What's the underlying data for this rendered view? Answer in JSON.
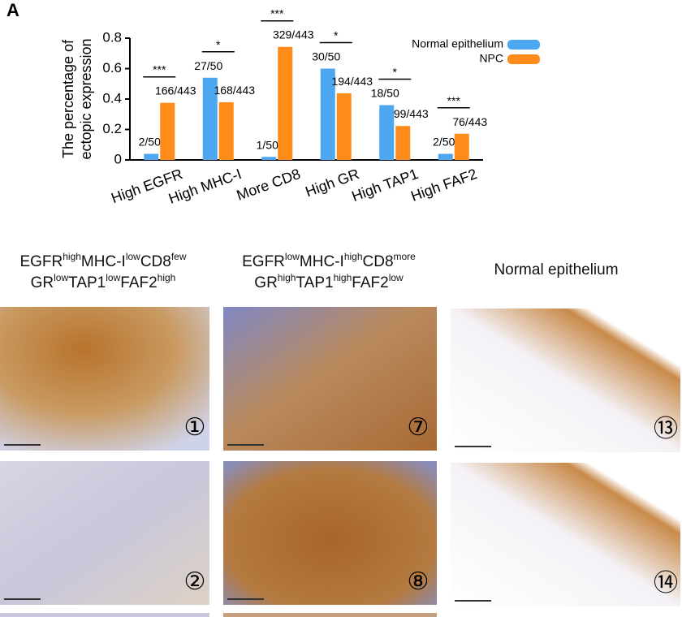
{
  "panel_label": "A",
  "chart_data": {
    "type": "bar",
    "y_label": [
      "The percentage of",
      "ectopic expression"
    ],
    "categories": [
      "High EGFR",
      "High MHC-I",
      "More CD8",
      "High GR",
      "High TAP1",
      "High FAF2"
    ],
    "series": [
      {
        "name": "Normal epithelium",
        "color": "#4da6f0",
        "values": [
          0.04,
          0.54,
          0.02,
          0.6,
          0.36,
          0.04
        ],
        "value_labels": [
          "2/50",
          "27/50",
          "1/50",
          "30/50",
          "18/50",
          "2/50"
        ]
      },
      {
        "name": "NPC",
        "color": "#ff8c1a",
        "values": [
          0.375,
          0.379,
          0.743,
          0.438,
          0.223,
          0.172
        ],
        "value_labels": [
          "166/443",
          "168/443",
          "329/443",
          "194/443",
          "99/443",
          "76/443"
        ]
      }
    ],
    "significance": [
      "***",
      "*",
      "***",
      "*",
      "*",
      "***"
    ],
    "ylim": [
      0,
      0.8
    ],
    "yticks": [
      0,
      0.2,
      0.4,
      0.6,
      0.8
    ],
    "legend": "top-right"
  },
  "headers": [
    {
      "lines": [
        [
          [
            "EGFR",
            "high"
          ],
          [
            "MHC-I",
            "low"
          ],
          [
            "CD8",
            "few"
          ]
        ],
        [
          [
            "GR",
            "low"
          ],
          [
            "TAP1",
            "low"
          ],
          [
            "FAF2",
            "high"
          ]
        ]
      ]
    },
    {
      "lines": [
        [
          [
            "EGFR",
            "low"
          ],
          [
            "MHC-I",
            "high"
          ],
          [
            "CD8",
            "more"
          ]
        ],
        [
          [
            "GR",
            "high"
          ],
          [
            "TAP1",
            "high"
          ],
          [
            "FAF2",
            "low"
          ]
        ]
      ]
    },
    {
      "lines": [
        [
          [
            "Normal epithelium"
          ]
        ]
      ]
    }
  ],
  "panels": [
    [
      "①",
      "②"
    ],
    [
      "⑦",
      "⑧"
    ],
    [
      "⑬",
      "⑭"
    ]
  ]
}
